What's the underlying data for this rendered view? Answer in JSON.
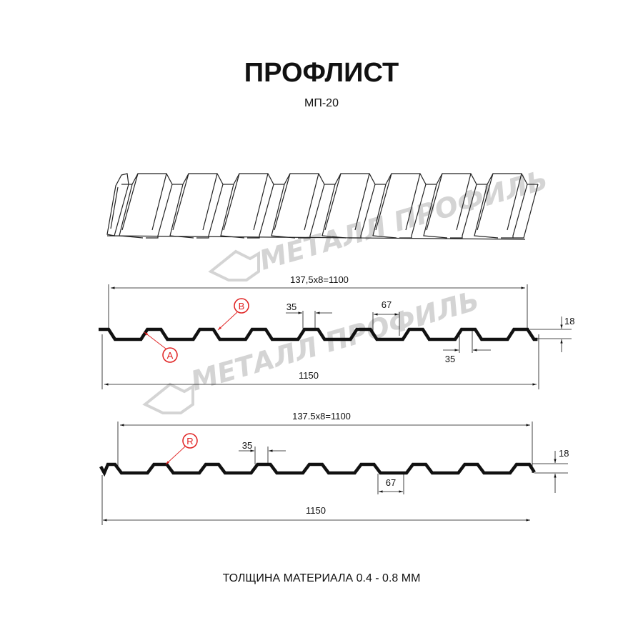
{
  "header": {
    "title": "ПРОФЛИСТ",
    "subtitle": "МП-20"
  },
  "watermark": {
    "text": "МЕТАЛЛ ПРОФИЛЬ"
  },
  "profile_a": {
    "pitch_label": "137,5x8=1100",
    "total_label": "1150",
    "top_width_label": "35",
    "bottom_width_label": "67",
    "bottom_35_label": "35",
    "height_label": "18",
    "callout_a": "A",
    "callout_b": "B"
  },
  "profile_b": {
    "pitch_label": "137.5x8=1100",
    "total_label": "1150",
    "top_width_label": "35",
    "bottom_width_label": "67",
    "height_label": "18",
    "callout_r": "R"
  },
  "footer": {
    "thickness": "ТОЛЩИНА МАТЕРИАЛА 0.4 - 0.8 ММ"
  },
  "colors": {
    "line": "#111111",
    "callout": "#e02020",
    "watermark": "#d4d4d4"
  }
}
